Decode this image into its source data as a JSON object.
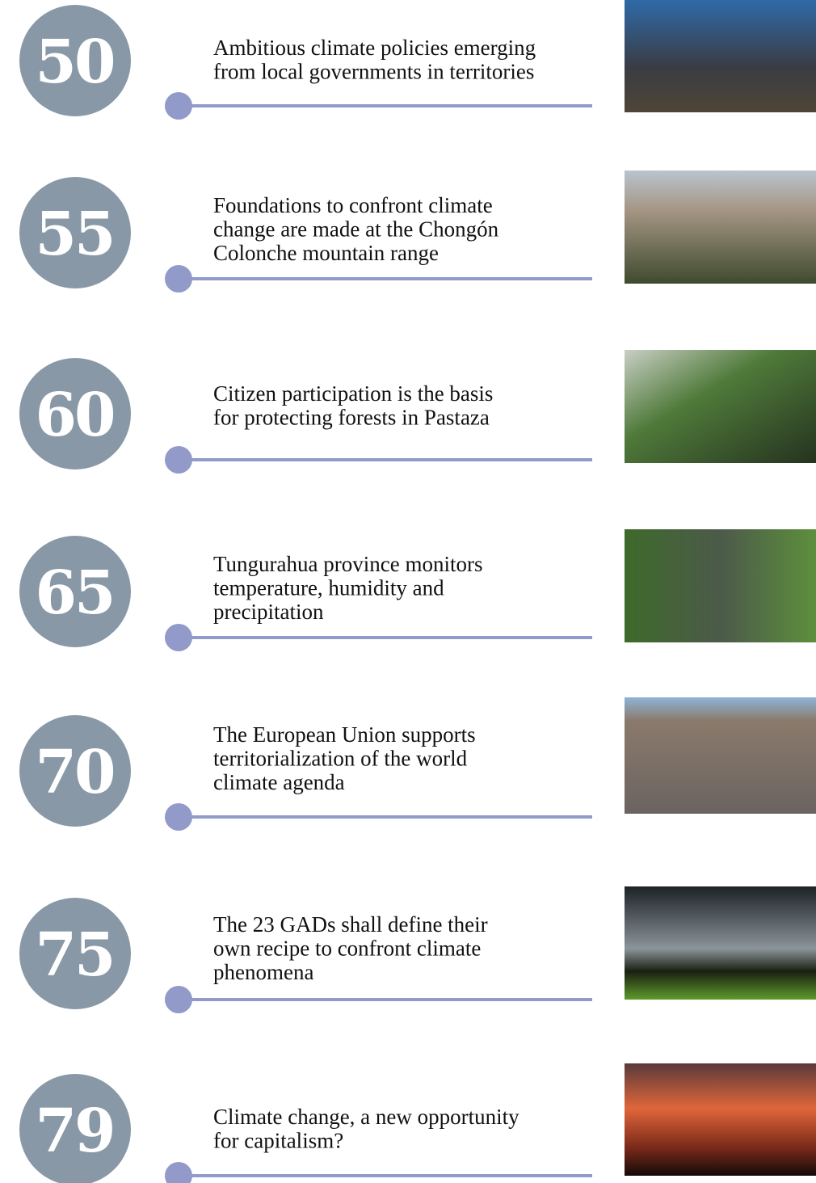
{
  "items": [
    {
      "page": "50",
      "title": [
        "Ambitious climate policies emerging",
        "from local governments in territories"
      ]
    },
    {
      "page": "55",
      "title": [
        "Foundations to confront climate",
        "change are made at the Chongón",
        "Colonche mountain range"
      ]
    },
    {
      "page": "60",
      "title": [
        "Citizen participation is the basis",
        "for protecting forests in Pastaza"
      ]
    },
    {
      "page": "65",
      "title": [
        "Tungurahua province monitors",
        "temperature, humidity and",
        "precipitation"
      ]
    },
    {
      "page": "70",
      "title": [
        "The European Union supports",
        "territorialization of the world",
        "climate agenda"
      ]
    },
    {
      "page": "75",
      "title": [
        "The 23 GADs shall define their",
        "own recipe to confront climate",
        "phenomena"
      ]
    },
    {
      "page": "79",
      "title": [
        "Climate change, a new opportunity",
        "for capitalism?"
      ]
    }
  ]
}
